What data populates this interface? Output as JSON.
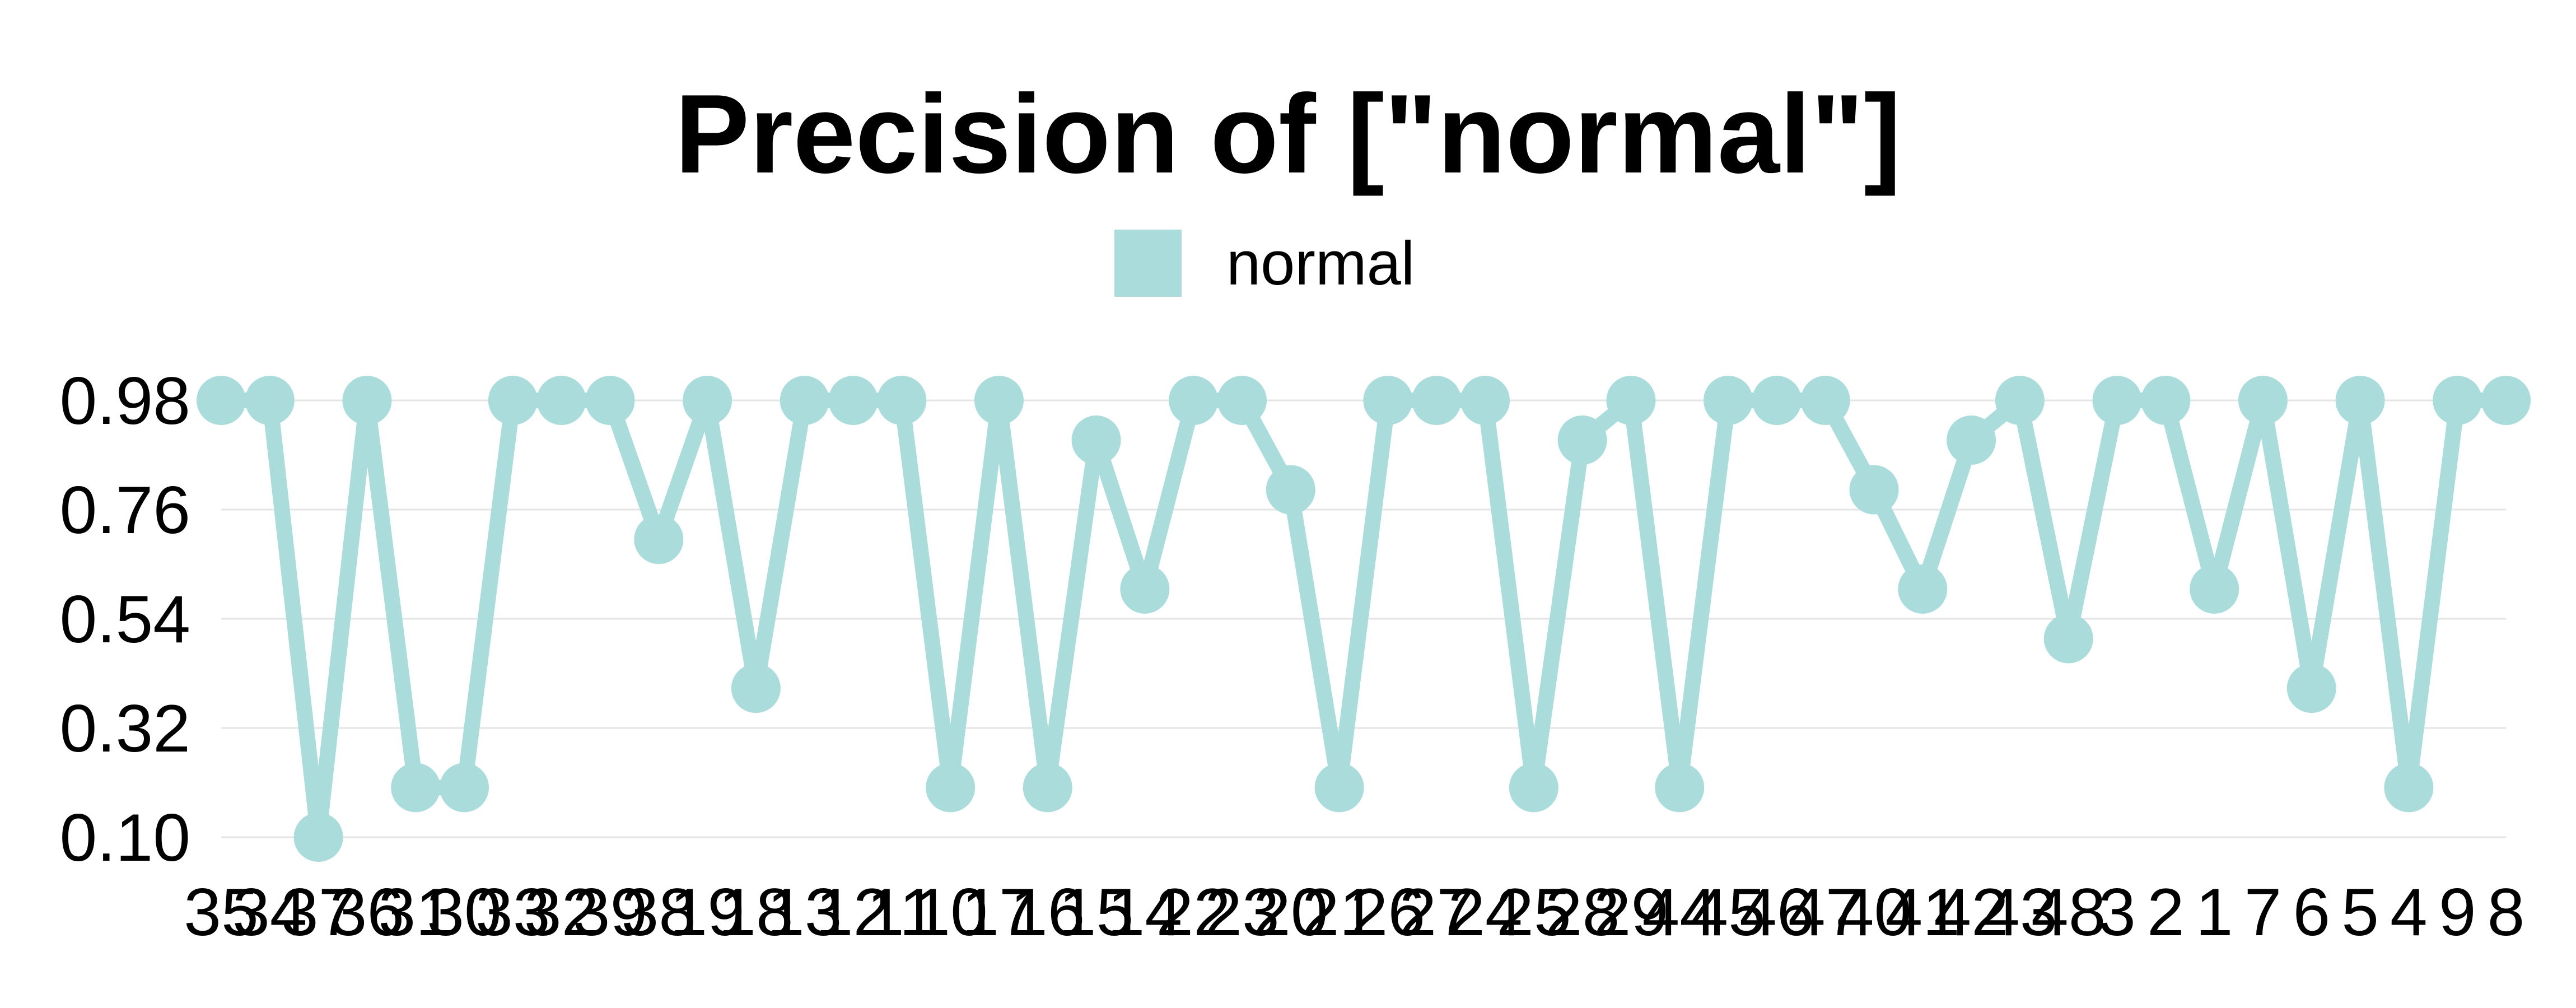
{
  "chart_data": {
    "type": "line",
    "title": "Precision of [\"normal\"]",
    "xlabel": "",
    "ylabel": "",
    "categories": [
      "35",
      "34",
      "37",
      "36",
      "31",
      "30",
      "33",
      "32",
      "39",
      "38",
      "19",
      "18",
      "13",
      "12",
      "11",
      "10",
      "17",
      "16",
      "15",
      "14",
      "22",
      "23",
      "20",
      "21",
      "26",
      "27",
      "24",
      "25",
      "28",
      "29",
      "44",
      "45",
      "46",
      "47",
      "40",
      "41",
      "42",
      "43",
      "48",
      "3",
      "2",
      "1",
      "7",
      "6",
      "5",
      "4",
      "9",
      "8"
    ],
    "series": [
      {
        "name": "normal",
        "values": [
          0.98,
          0.98,
          0.1,
          0.98,
          0.2,
          0.2,
          0.98,
          0.98,
          0.98,
          0.7,
          0.98,
          0.4,
          0.98,
          0.98,
          0.98,
          0.2,
          0.98,
          0.2,
          0.9,
          0.6,
          0.98,
          0.98,
          0.8,
          0.2,
          0.98,
          0.98,
          0.98,
          0.2,
          0.9,
          0.98,
          0.2,
          0.98,
          0.98,
          0.98,
          0.8,
          0.6,
          0.9,
          0.98,
          0.5,
          0.98,
          0.98,
          0.6,
          0.98,
          0.4,
          0.98,
          0.2,
          0.98,
          0.98
        ]
      }
    ],
    "ylim": [
      0.1,
      0.98
    ],
    "yticks": [
      "0.10",
      "0.32",
      "0.54",
      "0.76",
      "0.98"
    ],
    "grid": "horizontal",
    "legend_position": "top-center",
    "color": "#aadcdb"
  }
}
